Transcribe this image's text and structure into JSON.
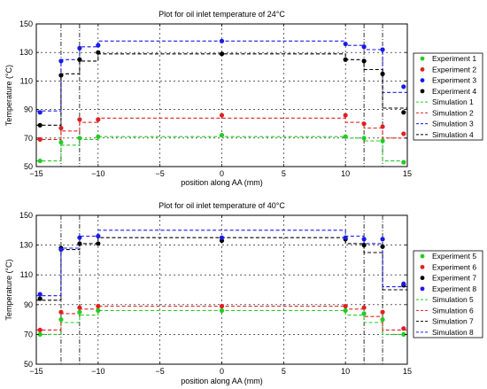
{
  "chart_data": [
    {
      "type": "scatter",
      "title": "Plot for oil inlet temperature of 24°C",
      "xlabel": "position along AA (mm)",
      "ylabel": "Temperature (°C)",
      "xlim": [
        -15,
        15
      ],
      "ylim": [
        50,
        150
      ],
      "xticks": [
        -15,
        -10,
        -5,
        0,
        5,
        10,
        15
      ],
      "yticks": [
        50,
        70,
        90,
        110,
        130,
        150
      ],
      "grid_x": [
        -13,
        -11.5,
        11.5,
        13
      ],
      "legend": "right",
      "series": [
        {
          "name": "Experiment 1",
          "kind": "points",
          "color": "#22cc22",
          "x": [
            -14.7,
            -13,
            -11.5,
            -10,
            0,
            10,
            11.5,
            13,
            14.7
          ],
          "y": [
            54,
            67,
            70,
            71,
            72,
            71,
            70,
            68,
            53
          ]
        },
        {
          "name": "Experiment 2",
          "kind": "points",
          "color": "#e02020",
          "x": [
            -14.7,
            -13,
            -11.5,
            -10,
            0,
            10,
            11.5,
            13,
            14.7
          ],
          "y": [
            69,
            77,
            83,
            83,
            86,
            86,
            80,
            78,
            73
          ]
        },
        {
          "name": "Experiment 3",
          "kind": "points",
          "color": "#1a1aee",
          "x": [
            -14.7,
            -13,
            -11.5,
            -10,
            0,
            10,
            11.5,
            13,
            14.7
          ],
          "y": [
            88,
            124,
            133,
            135,
            138,
            136,
            134,
            132,
            106
          ]
        },
        {
          "name": "Experiment 4",
          "kind": "points",
          "color": "#000000",
          "x": [
            -14.7,
            -13,
            -11.5,
            -10,
            0,
            10,
            11.5,
            13,
            14.7
          ],
          "y": [
            79,
            114,
            125,
            130,
            129,
            125,
            124,
            115,
            88
          ]
        },
        {
          "name": "Simulation 1",
          "kind": "step",
          "color": "#22cc22",
          "x": [
            -15,
            -13,
            -13,
            -11.5,
            -11.5,
            -10,
            -10,
            10,
            10,
            11.5,
            11.5,
            13,
            13,
            15
          ],
          "y": [
            54,
            54,
            65,
            65,
            69,
            69,
            71,
            71,
            70,
            70,
            68,
            68,
            54,
            54
          ]
        },
        {
          "name": "Simulation 2",
          "kind": "step",
          "color": "#e02020",
          "x": [
            -15,
            -13,
            -13,
            -11.5,
            -11.5,
            -10,
            -10,
            10,
            10,
            11.5,
            11.5,
            13,
            13,
            15
          ],
          "y": [
            69,
            69,
            75,
            75,
            81,
            81,
            84,
            84,
            81,
            81,
            77,
            77,
            70,
            70
          ]
        },
        {
          "name": "Simulation 3",
          "kind": "step",
          "color": "#1a1aee",
          "x": [
            -15,
            -13,
            -13,
            -11.5,
            -11.5,
            -10,
            -10,
            10,
            10,
            11.5,
            11.5,
            13,
            13,
            15
          ],
          "y": [
            89,
            89,
            125,
            125,
            134,
            134,
            138,
            138,
            135,
            135,
            132,
            132,
            102,
            102
          ]
        },
        {
          "name": "Simulation 4",
          "kind": "step",
          "color": "#000000",
          "x": [
            -15,
            -13,
            -13,
            -11.5,
            -11.5,
            -10,
            -10,
            10,
            10,
            11.5,
            11.5,
            13,
            13,
            15
          ],
          "y": [
            79,
            79,
            115,
            115,
            124,
            124,
            129,
            129,
            125,
            125,
            118,
            118,
            91,
            91
          ]
        }
      ]
    },
    {
      "type": "scatter",
      "title": "Plot for oil inlet temperature of 40°C",
      "xlabel": "position along AA (mm)",
      "ylabel": "Temperature (°C)",
      "xlim": [
        -15,
        15
      ],
      "ylim": [
        50,
        150
      ],
      "xticks": [
        -15,
        -10,
        -5,
        0,
        5,
        10,
        15
      ],
      "yticks": [
        50,
        70,
        90,
        110,
        130,
        150
      ],
      "grid_x": [
        -13,
        -11.5,
        11.5,
        13
      ],
      "legend": "right",
      "series": [
        {
          "name": "Experiment 5",
          "kind": "points",
          "color": "#22cc22",
          "x": [
            -14.7,
            -13,
            -11.5,
            -10,
            0,
            10,
            11.5,
            13,
            14.7
          ],
          "y": [
            70,
            80,
            85,
            86,
            86,
            86,
            84,
            80,
            70
          ]
        },
        {
          "name": "Experiment 6",
          "kind": "points",
          "color": "#e02020",
          "x": [
            -14.7,
            -13,
            -11.5,
            -10,
            0,
            10,
            11.5,
            13,
            14.7
          ],
          "y": [
            73,
            85,
            88,
            89,
            89,
            89,
            88,
            85,
            74
          ]
        },
        {
          "name": "Experiment 7",
          "kind": "points",
          "color": "#000000",
          "x": [
            -14.7,
            -13,
            -11.5,
            -10,
            0,
            10,
            11.5,
            13,
            14.7
          ],
          "y": [
            94,
            128,
            131,
            131,
            133,
            134,
            130,
            129,
            103
          ]
        },
        {
          "name": "Experiment 8",
          "kind": "points",
          "color": "#1a1aee",
          "x": [
            -14.7,
            -13,
            -11.5,
            -10,
            0,
            10,
            11.5,
            13,
            14.7
          ],
          "y": [
            97,
            127,
            135,
            136,
            135,
            135,
            134,
            134,
            104
          ]
        },
        {
          "name": "Simulation 5",
          "kind": "step",
          "color": "#22cc22",
          "x": [
            -15,
            -13,
            -13,
            -11.5,
            -11.5,
            -10,
            -10,
            10,
            10,
            11.5,
            11.5,
            13,
            13,
            15
          ],
          "y": [
            70,
            70,
            78,
            78,
            83,
            83,
            86,
            86,
            83,
            83,
            78,
            78,
            70,
            70
          ]
        },
        {
          "name": "Simulation 6",
          "kind": "step",
          "color": "#e02020",
          "x": [
            -15,
            -13,
            -13,
            -11.5,
            -11.5,
            -10,
            -10,
            10,
            10,
            11.5,
            11.5,
            13,
            13,
            15
          ],
          "y": [
            73,
            73,
            84,
            84,
            87,
            87,
            89,
            89,
            87,
            87,
            82,
            82,
            73,
            73
          ]
        },
        {
          "name": "Simulation 7",
          "kind": "step",
          "color": "#000000",
          "x": [
            -15,
            -13,
            -13,
            -11.5,
            -11.5,
            -10,
            -10,
            10,
            10,
            11.5,
            11.5,
            13,
            13,
            15
          ],
          "y": [
            93,
            93,
            127,
            127,
            131,
            131,
            135,
            135,
            131,
            131,
            125,
            125,
            100,
            100
          ]
        },
        {
          "name": "Simulation 8",
          "kind": "step",
          "color": "#1a1aee",
          "x": [
            -15,
            -13,
            -13,
            -11.5,
            -11.5,
            -10,
            -10,
            10,
            10,
            11.5,
            11.5,
            13,
            13,
            15
          ],
          "y": [
            96,
            96,
            128,
            128,
            136,
            136,
            140,
            140,
            136,
            136,
            131,
            131,
            102,
            102
          ]
        }
      ]
    }
  ]
}
